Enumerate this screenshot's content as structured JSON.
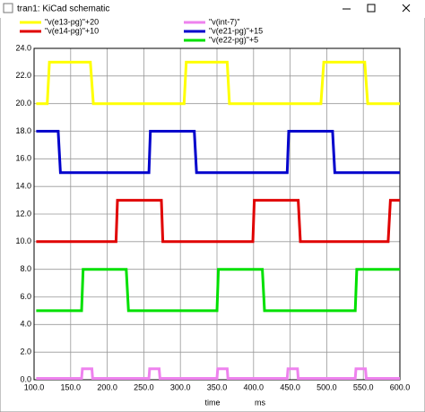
{
  "window": {
    "title": "tran1: KiCad schematic"
  },
  "chart_data": {
    "type": "line",
    "xlabel": "time",
    "xunit": "ms",
    "xlim": [
      100,
      600
    ],
    "xticks": [
      {
        "value": 100,
        "label": "100.0"
      },
      {
        "value": 150,
        "label": "150.0"
      },
      {
        "value": 200,
        "label": "200.0"
      },
      {
        "value": 250,
        "label": "250.0"
      },
      {
        "value": 300,
        "label": "300.0"
      },
      {
        "value": 350,
        "label": "350.0"
      },
      {
        "value": 400,
        "label": "400.0"
      },
      {
        "value": 450,
        "label": "450.0"
      },
      {
        "value": 500,
        "label": "500.0"
      },
      {
        "value": 550,
        "label": "550.0"
      },
      {
        "value": 600,
        "label": "600.0"
      }
    ],
    "ylim": [
      0,
      24
    ],
    "yticks": [
      {
        "value": 0,
        "label": "0.0"
      },
      {
        "value": 2,
        "label": "2.0"
      },
      {
        "value": 4,
        "label": "4.0"
      },
      {
        "value": 6,
        "label": "6.0"
      },
      {
        "value": 8,
        "label": "8.0"
      },
      {
        "value": 10,
        "label": "10.0"
      },
      {
        "value": 12,
        "label": "12.0"
      },
      {
        "value": 14,
        "label": "14.0"
      },
      {
        "value": 16,
        "label": "16.0"
      },
      {
        "value": 18,
        "label": "18.0"
      },
      {
        "value": 20,
        "label": "20.0"
      },
      {
        "value": 22,
        "label": "22.0"
      },
      {
        "value": 24,
        "label": "24.0"
      }
    ],
    "grid": true,
    "series": [
      {
        "name": "\"v(e13-pg)\"+20",
        "color": "#ffff00",
        "x": [
          103,
          118,
          121,
          177,
          181,
          305,
          308,
          364,
          367,
          492,
          496,
          552,
          556,
          600
        ],
        "values": [
          20,
          20,
          23,
          23,
          20,
          20,
          23,
          23,
          20,
          20,
          23,
          23,
          20,
          20
        ]
      },
      {
        "name": "\"v(e14-pg)\"+10",
        "color": "#e00000",
        "x": [
          103,
          212,
          214,
          274,
          276,
          399,
          401,
          461,
          464,
          584,
          587,
          600
        ],
        "values": [
          10,
          10,
          13,
          13,
          10,
          10,
          13,
          13,
          10,
          10,
          13,
          13
        ]
      },
      {
        "name": "\"v(int-7)\"",
        "color": "#ee82ee",
        "x": [
          103,
          165,
          166,
          179,
          180,
          257,
          258,
          271,
          272,
          350,
          351,
          364,
          365,
          446,
          447,
          460,
          461,
          539,
          540,
          553,
          554,
          600
        ],
        "values": [
          0.1,
          0.1,
          0.8,
          0.8,
          0.1,
          0.1,
          0.8,
          0.8,
          0.1,
          0.1,
          0.8,
          0.8,
          0.1,
          0.1,
          0.8,
          0.8,
          0.1,
          0.1,
          0.8,
          0.8,
          0.1,
          0.1
        ]
      },
      {
        "name": "\"v(e21-pg)\"+15",
        "color": "#0000cc",
        "x": [
          103,
          133,
          136,
          257,
          259,
          319,
          322,
          446,
          448,
          508,
          511,
          600
        ],
        "values": [
          18,
          18,
          15,
          15,
          18,
          18,
          15,
          15,
          18,
          18,
          15,
          15
        ]
      },
      {
        "name": "\"v(e22-pg)\"+5",
        "color": "#00e000",
        "x": [
          103,
          165,
          167,
          226,
          229,
          350,
          352,
          412,
          415,
          539,
          541,
          600
        ],
        "values": [
          5,
          5,
          8,
          8,
          5,
          5,
          8,
          8,
          5,
          5,
          8,
          8
        ]
      }
    ]
  }
}
